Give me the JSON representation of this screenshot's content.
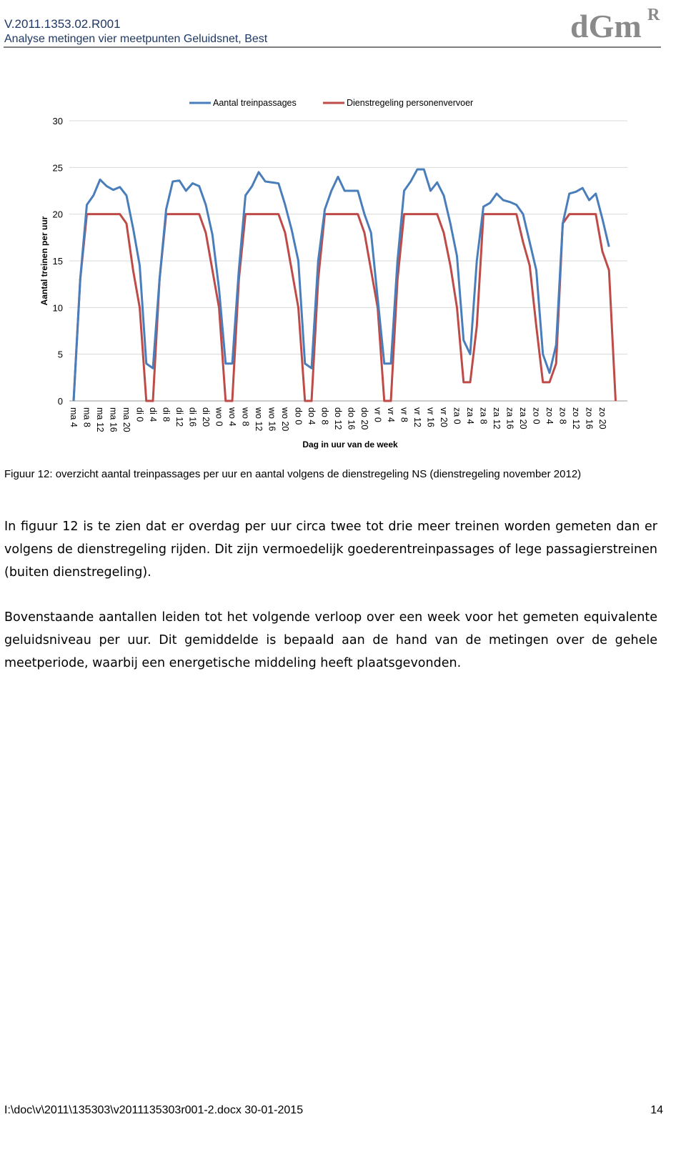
{
  "header": {
    "code": "V.2011.1353.02.R001",
    "subtitle": "Analyse metingen vier meetpunten Geluidsnet, Best",
    "logo": {
      "main": "dGm",
      "sup": "R"
    }
  },
  "chart_data": {
    "type": "line",
    "y_label": "Aantal treinen per uur",
    "x_label": "Dag in uur van de week",
    "categories": [
      "ma 4",
      null,
      "ma 8",
      null,
      "ma 12",
      null,
      "ma 16",
      null,
      "ma 20",
      null,
      "di 0",
      null,
      "di 4",
      null,
      "di 8",
      null,
      "di 12",
      null,
      "di 16",
      null,
      "di 20",
      null,
      "wo 0",
      null,
      "wo 4",
      null,
      "wo 8",
      null,
      "wo 12",
      null,
      "wo 16",
      null,
      "wo 20",
      null,
      "do 0",
      null,
      "do 4",
      null,
      "do 8",
      null,
      "do 12",
      null,
      "do 16",
      null,
      "do 20",
      null,
      "vr 0",
      null,
      "vr 4",
      null,
      "vr 8",
      null,
      "vr 12",
      null,
      "vr 16",
      null,
      "vr 20",
      null,
      "za 0",
      null,
      "za 4",
      null,
      "za 8",
      null,
      "za 12",
      null,
      "za 16",
      null,
      "za 20",
      null,
      "zo 0",
      null,
      "zo 4",
      null,
      "zo 8",
      null,
      "zo 12",
      null,
      "zo 16",
      null,
      "zo 20",
      null,
      null
    ],
    "series": [
      {
        "name": "Aantal treinpassages",
        "color": "#4a7ebb",
        "values": [
          0,
          13,
          21,
          22,
          23.7,
          23,
          22.6,
          22.9,
          22,
          18.5,
          14.5,
          4,
          3.5,
          13,
          20.5,
          23.5,
          23.6,
          22.5,
          23.3,
          23,
          21,
          17.8,
          12,
          4,
          4,
          14,
          22,
          23,
          24.5,
          23.5,
          23.4,
          23.3,
          21,
          18.3,
          15,
          4,
          3.5,
          15,
          20.5,
          22.5,
          24,
          22.5,
          22.5,
          22.5,
          20,
          18,
          11,
          4,
          4,
          15,
          22.5,
          23.5,
          24.8,
          24.8,
          22.5,
          23.4,
          22,
          19,
          15.5,
          6.5,
          5,
          15,
          20.8,
          21.2,
          22.2,
          21.5,
          21.3,
          21,
          20,
          17,
          14,
          5,
          3,
          6,
          19,
          22.2,
          22.4,
          22.8,
          21.5,
          22.2,
          19.5,
          16.5,
          null
        ]
      },
      {
        "name": "Dienstregeling personenvervoer",
        "color": "#be4b48",
        "values": [
          0,
          13,
          20,
          20,
          20,
          20,
          20,
          20,
          19,
          14,
          10,
          0,
          0,
          13,
          20,
          20,
          20,
          20,
          20,
          20,
          18,
          14,
          10,
          0,
          0,
          13,
          20,
          20,
          20,
          20,
          20,
          20,
          18,
          14,
          10,
          0,
          0,
          13,
          20,
          20,
          20,
          20,
          20,
          20,
          18,
          14,
          10,
          0,
          0,
          13,
          20,
          20,
          20,
          20,
          20,
          20,
          18,
          14.5,
          10,
          2,
          2,
          8,
          20,
          20,
          20,
          20,
          20,
          20,
          17,
          14.5,
          8,
          2,
          2,
          4,
          19,
          20,
          20,
          20,
          20,
          20,
          16,
          14,
          0
        ]
      }
    ],
    "ylim": [
      0,
      30
    ],
    "yticks": [
      0,
      5,
      10,
      15,
      20,
      25,
      30
    ],
    "grid": true,
    "legend": "top"
  },
  "caption": "Figuur 12: overzicht aantal treinpassages per uur en aantal volgens de dienstregeling NS (dienstregeling november 2012)",
  "paragraphs": [
    "In figuur 12 is te zien dat er overdag per uur circa twee tot drie meer treinen worden gemeten dan er volgens de dienstregeling rijden. Dit zijn vermoedelijk goederentreinpassages of lege passagierstreinen (buiten dienstregeling).",
    "Bovenstaande aantallen leiden tot het volgende verloop over een week voor het gemeten equivalente geluidsniveau per uur. Dit gemiddelde is bepaald aan de hand van de metingen over de gehele meetperiode, waarbij een energetische middeling heeft plaatsgevonden."
  ],
  "footer": {
    "path": "I:\\doc\\v\\2011\\135303\\v2011135303r001-2.docx 30-01-2015",
    "page": "14"
  }
}
